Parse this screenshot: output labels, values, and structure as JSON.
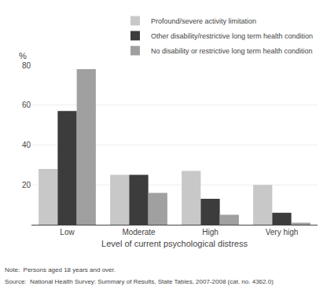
{
  "chart_data": {
    "type": "bar",
    "categories": [
      "Low",
      "Moderate",
      "High",
      "Very high"
    ],
    "series": [
      {
        "name": "Profound/severe activity limitation",
        "color": "#c8c8c8",
        "values": [
          28,
          25,
          27,
          20
        ]
      },
      {
        "name": "Other disability/restrictive long term health condition",
        "color": "#3c3c3c",
        "values": [
          57,
          25,
          13,
          6
        ]
      },
      {
        "name": "No disability or restrictive long term health condition",
        "color": "#a0a0a0",
        "values": [
          78,
          16,
          5,
          1
        ]
      }
    ],
    "xlabel": "Level of current psychological distress",
    "ylabel": "%",
    "ylim": [
      0,
      80
    ],
    "yticks": [
      20,
      40,
      60,
      80
    ],
    "grid": true,
    "legend": "upper right",
    "annotations": [
      "Note:  Persons aged 18 years and over.",
      "Source:  National Health Survey: Summary of Results, State Tables, 2007-2008 (cat. no. 4362.0)"
    ]
  }
}
